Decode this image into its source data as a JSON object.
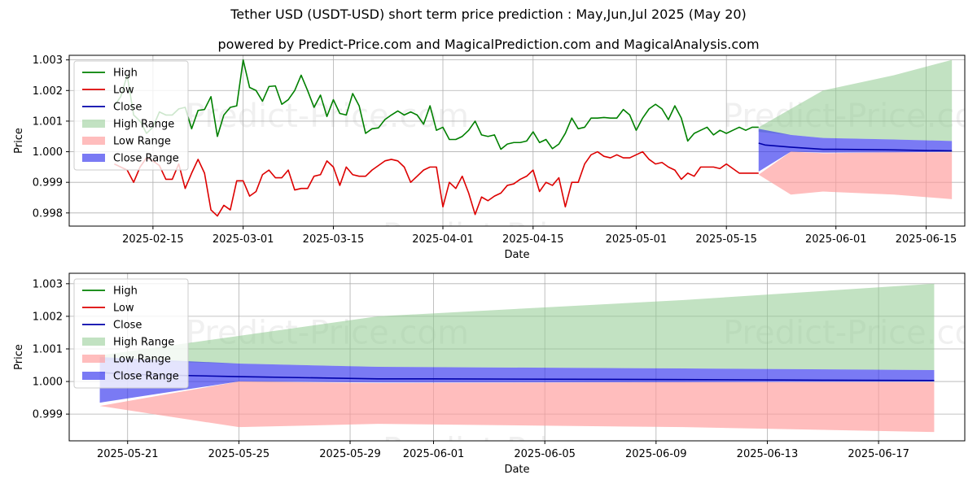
{
  "title": "Tether USD (USDT-USD) short term price prediction : May,Jun,Jul 2025 (May 20)",
  "subtitle": "powered by Predict-Price.com and MagicalPrediction.com and MagicalAnalysis.com",
  "watermark": "Predict-Price.com",
  "colors": {
    "high": "#008000",
    "low": "#dd0000",
    "close": "#0000aa",
    "high_range": "#8fca8f",
    "low_range": "#ff9a9a",
    "close_range": "#3333ee"
  },
  "chart_data": [
    {
      "type": "line",
      "xlabel": "Date",
      "ylabel": "Price",
      "x_ticks": [
        "2025-02-15",
        "2025-03-01",
        "2025-03-15",
        "2025-04-01",
        "2025-04-15",
        "2025-05-01",
        "2025-05-15",
        "2025-06-01",
        "2025-06-15"
      ],
      "y_ticks": [
        "0.998",
        "0.999",
        "1.000",
        "1.001",
        "1.002",
        "1.003"
      ],
      "xlim": [
        "2025-02-02",
        "2025-06-21"
      ],
      "ylim": [
        0.99757,
        1.00315
      ],
      "grid": true,
      "legend_position": "upper left",
      "legend": [
        "High",
        "Low",
        "Close",
        "High Range",
        "Low Range",
        "Close Range"
      ],
      "series": [
        {
          "name": "High",
          "x": [
            "2025-02-09",
            "2025-02-10",
            "2025-02-11",
            "2025-02-12",
            "2025-02-13",
            "2025-02-14",
            "2025-02-15",
            "2025-02-16",
            "2025-02-17",
            "2025-02-18",
            "2025-02-19",
            "2025-02-20",
            "2025-02-21",
            "2025-02-22",
            "2025-02-23",
            "2025-02-24",
            "2025-02-25",
            "2025-02-26",
            "2025-02-27",
            "2025-02-28",
            "2025-03-01",
            "2025-03-02",
            "2025-03-03",
            "2025-03-04",
            "2025-03-05",
            "2025-03-06",
            "2025-03-07",
            "2025-03-08",
            "2025-03-09",
            "2025-03-10",
            "2025-03-11",
            "2025-03-12",
            "2025-03-13",
            "2025-03-14",
            "2025-03-15",
            "2025-03-16",
            "2025-03-17",
            "2025-03-18",
            "2025-03-19",
            "2025-03-20",
            "2025-03-21",
            "2025-03-22",
            "2025-03-23",
            "2025-03-24",
            "2025-03-25",
            "2025-03-26",
            "2025-03-27",
            "2025-03-28",
            "2025-03-29",
            "2025-03-30",
            "2025-03-31",
            "2025-04-01",
            "2025-04-02",
            "2025-04-03",
            "2025-04-04",
            "2025-04-05",
            "2025-04-06",
            "2025-04-07",
            "2025-04-08",
            "2025-04-09",
            "2025-04-10",
            "2025-04-11",
            "2025-04-12",
            "2025-04-13",
            "2025-04-14",
            "2025-04-15",
            "2025-04-16",
            "2025-04-17",
            "2025-04-18",
            "2025-04-19",
            "2025-04-20",
            "2025-04-21",
            "2025-04-22",
            "2025-04-23",
            "2025-04-24",
            "2025-04-25",
            "2025-04-26",
            "2025-04-27",
            "2025-04-28",
            "2025-04-29",
            "2025-04-30",
            "2025-05-01",
            "2025-05-02",
            "2025-05-03",
            "2025-05-04",
            "2025-05-05",
            "2025-05-06",
            "2025-05-07",
            "2025-05-08",
            "2025-05-09",
            "2025-05-10",
            "2025-05-11",
            "2025-05-12",
            "2025-05-13",
            "2025-05-14",
            "2025-05-15",
            "2025-05-16",
            "2025-05-17",
            "2025-05-18",
            "2025-05-19",
            "2025-05-20"
          ],
          "values": [
            1.0015,
            1.0018,
            1.0025,
            1.0012,
            1.001,
            1.0006,
            1.0008,
            1.0013,
            1.0012,
            1.0012,
            1.0014,
            1.00145,
            1.00075,
            1.00135,
            1.00138,
            1.0018,
            1.0005,
            1.0012,
            1.00145,
            1.0015,
            1.003,
            1.0021,
            1.002,
            1.00165,
            1.00213,
            1.00215,
            1.00155,
            1.0017,
            1.002,
            1.0025,
            1.002,
            1.00145,
            1.00185,
            1.00115,
            1.0017,
            1.00125,
            1.0012,
            1.0019,
            1.0015,
            1.0006,
            1.00075,
            1.00078,
            1.00105,
            1.0012,
            1.00133,
            1.0012,
            1.0013,
            1.0012,
            1.0009,
            1.0015,
            1.0007,
            1.0008,
            1.0004,
            1.0004,
            1.0005,
            1.0007,
            1.001,
            1.00055,
            1.0005,
            1.00055,
            1.00008,
            1.00025,
            1.0003,
            1.0003,
            1.00035,
            1.00065,
            1.0003,
            1.0004,
            1.0001,
            1.00025,
            1.0006,
            1.0011,
            1.00075,
            1.0008,
            1.0011,
            1.0011,
            1.00112,
            1.0011,
            1.0011,
            1.00138,
            1.0012,
            1.0007,
            1.0011,
            1.0014,
            1.00155,
            1.0014,
            1.00105,
            1.0015,
            1.0011,
            1.00035,
            1.0006,
            1.0007,
            1.0008,
            1.00055,
            1.0007,
            1.0006,
            1.0007,
            1.0008,
            1.0007,
            1.0008,
            1.0008
          ]
        },
        {
          "name": "Low",
          "x": [
            "2025-02-09",
            "2025-02-10",
            "2025-02-11",
            "2025-02-12",
            "2025-02-13",
            "2025-02-14",
            "2025-02-15",
            "2025-02-16",
            "2025-02-17",
            "2025-02-18",
            "2025-02-19",
            "2025-02-20",
            "2025-02-21",
            "2025-02-22",
            "2025-02-23",
            "2025-02-24",
            "2025-02-25",
            "2025-02-26",
            "2025-02-27",
            "2025-02-28",
            "2025-03-01",
            "2025-03-02",
            "2025-03-03",
            "2025-03-04",
            "2025-03-05",
            "2025-03-06",
            "2025-03-07",
            "2025-03-08",
            "2025-03-09",
            "2025-03-10",
            "2025-03-11",
            "2025-03-12",
            "2025-03-13",
            "2025-03-14",
            "2025-03-15",
            "2025-03-16",
            "2025-03-17",
            "2025-03-18",
            "2025-03-19",
            "2025-03-20",
            "2025-03-21",
            "2025-03-22",
            "2025-03-23",
            "2025-03-24",
            "2025-03-25",
            "2025-03-26",
            "2025-03-27",
            "2025-03-28",
            "2025-03-29",
            "2025-03-30",
            "2025-03-31",
            "2025-04-01",
            "2025-04-02",
            "2025-04-03",
            "2025-04-04",
            "2025-04-05",
            "2025-04-06",
            "2025-04-07",
            "2025-04-08",
            "2025-04-09",
            "2025-04-10",
            "2025-04-11",
            "2025-04-12",
            "2025-04-13",
            "2025-04-14",
            "2025-04-15",
            "2025-04-16",
            "2025-04-17",
            "2025-04-18",
            "2025-04-19",
            "2025-04-20",
            "2025-04-21",
            "2025-04-22",
            "2025-04-23",
            "2025-04-24",
            "2025-04-25",
            "2025-04-26",
            "2025-04-27",
            "2025-04-28",
            "2025-04-29",
            "2025-04-30",
            "2025-05-01",
            "2025-05-02",
            "2025-05-03",
            "2025-05-04",
            "2025-05-05",
            "2025-05-06",
            "2025-05-07",
            "2025-05-08",
            "2025-05-09",
            "2025-05-10",
            "2025-05-11",
            "2025-05-12",
            "2025-05-13",
            "2025-05-14",
            "2025-05-15",
            "2025-05-16",
            "2025-05-17",
            "2025-05-18",
            "2025-05-19",
            "2025-05-20"
          ],
          "values": [
            0.9996,
            0.9995,
            0.9994,
            0.999,
            0.9995,
            0.9998,
            0.9997,
            0.99955,
            0.9991,
            0.9991,
            0.9996,
            0.9988,
            0.9993,
            0.99975,
            0.9993,
            0.9981,
            0.9979,
            0.99825,
            0.9981,
            0.99905,
            0.99905,
            0.99855,
            0.9987,
            0.99925,
            0.9994,
            0.99915,
            0.99915,
            0.9994,
            0.99875,
            0.9988,
            0.9988,
            0.9992,
            0.99925,
            0.9997,
            0.9995,
            0.9989,
            0.9995,
            0.99925,
            0.9992,
            0.9992,
            0.9994,
            0.99955,
            0.9997,
            0.99975,
            0.9997,
            0.9995,
            0.999,
            0.9992,
            0.9994,
            0.9995,
            0.9995,
            0.9982,
            0.999,
            0.9988,
            0.9992,
            0.99865,
            0.99795,
            0.99852,
            0.9984,
            0.99855,
            0.99865,
            0.9989,
            0.99895,
            0.9991,
            0.9992,
            0.9994,
            0.9987,
            0.999,
            0.9989,
            0.99915,
            0.9982,
            0.999,
            0.999,
            0.9996,
            0.9999,
            1.0,
            0.99985,
            0.9998,
            0.9999,
            0.9998,
            0.9998,
            0.9999,
            1.0,
            0.99975,
            0.9996,
            0.99965,
            0.9995,
            0.9994,
            0.9991,
            0.9993,
            0.9992,
            0.9995,
            0.9995,
            0.9995,
            0.99945,
            0.9996,
            0.99945,
            0.9993,
            0.9993,
            0.9993,
            0.9993
          ]
        },
        {
          "name": "Close",
          "x": [
            "2025-05-20",
            "2025-05-21",
            "2025-05-25",
            "2025-05-30",
            "2025-06-01",
            "2025-06-10",
            "2025-06-15",
            "2025-06-19"
          ],
          "values": [
            1.00028,
            1.00022,
            1.00015,
            1.00008,
            1.00008,
            1.00006,
            1.00004,
            1.00003
          ]
        },
        {
          "name": "High Range",
          "x": [
            "2025-05-20",
            "2025-05-25",
            "2025-05-30",
            "2025-06-10",
            "2025-06-19"
          ],
          "upper": [
            1.0008,
            1.0014,
            1.002,
            1.0025,
            1.003
          ],
          "lower": [
            1.00065,
            1.00055,
            1.00045,
            1.0004,
            1.00035
          ]
        },
        {
          "name": "Low Range",
          "x": [
            "2025-05-20",
            "2025-05-25",
            "2025-05-30",
            "2025-06-10",
            "2025-06-19"
          ],
          "upper": [
            0.99925,
            1.0,
            0.99995,
            0.99998,
            0.99998
          ],
          "lower": [
            0.99925,
            0.9986,
            0.9987,
            0.9986,
            0.99845
          ]
        },
        {
          "name": "Close Range",
          "x": [
            "2025-05-20",
            "2025-05-25",
            "2025-05-30",
            "2025-06-10",
            "2025-06-19"
          ],
          "upper": [
            1.00075,
            1.00055,
            1.00045,
            1.0004,
            1.00035
          ],
          "lower": [
            0.99935,
            1.0,
            0.99997,
            0.99998,
            1.0
          ]
        }
      ]
    },
    {
      "type": "line",
      "xlabel": "Date",
      "ylabel": "Price",
      "x_ticks": [
        "2025-05-21",
        "2025-05-25",
        "2025-05-29",
        "2025-06-01",
        "2025-06-05",
        "2025-06-09",
        "2025-06-13",
        "2025-06-17"
      ],
      "y_ticks": [
        "0.999",
        "1.000",
        "1.001",
        "1.002",
        "1.003"
      ],
      "xlim": [
        "2025-05-18.9",
        "2025-06-20.1"
      ],
      "ylim": [
        0.99818,
        1.00332
      ],
      "grid": true,
      "legend_position": "upper left",
      "legend": [
        "High",
        "Low",
        "Close",
        "High Range",
        "Low Range",
        "Close Range"
      ],
      "series": [
        {
          "name": "Close",
          "x": [
            "2025-05-20",
            "2025-05-21",
            "2025-05-25",
            "2025-05-30",
            "2025-06-01",
            "2025-06-10",
            "2025-06-15",
            "2025-06-19"
          ],
          "values": [
            1.00028,
            1.00022,
            1.00015,
            1.00008,
            1.00008,
            1.00006,
            1.00004,
            1.00003
          ]
        },
        {
          "name": "High Range",
          "x": [
            "2025-05-20",
            "2025-05-25",
            "2025-05-30",
            "2025-06-10",
            "2025-06-19"
          ],
          "upper": [
            1.0008,
            1.0014,
            1.002,
            1.0025,
            1.003
          ],
          "lower": [
            1.00065,
            1.00055,
            1.00045,
            1.0004,
            1.00035
          ]
        },
        {
          "name": "Low Range",
          "x": [
            "2025-05-20",
            "2025-05-25",
            "2025-05-30",
            "2025-06-10",
            "2025-06-19"
          ],
          "upper": [
            0.99925,
            1.0,
            0.99995,
            0.99998,
            0.99998
          ],
          "lower": [
            0.99925,
            0.9986,
            0.9987,
            0.9986,
            0.99845
          ]
        },
        {
          "name": "Close Range",
          "x": [
            "2025-05-20",
            "2025-05-25",
            "2025-05-30",
            "2025-06-10",
            "2025-06-19"
          ],
          "upper": [
            1.00075,
            1.00055,
            1.00045,
            1.0004,
            1.00035
          ],
          "lower": [
            0.99935,
            1.0,
            0.99997,
            0.99998,
            1.0
          ]
        }
      ]
    }
  ]
}
